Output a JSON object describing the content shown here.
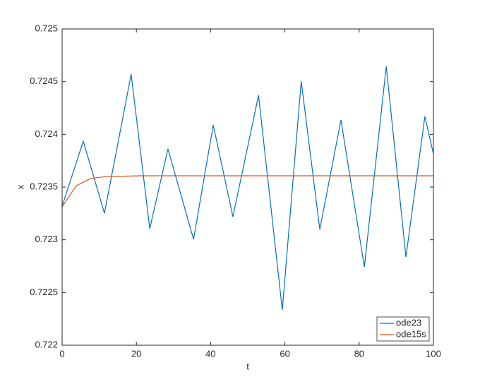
{
  "chart_data": {
    "type": "line",
    "xlabel": "t",
    "ylabel": "x",
    "xlim": [
      0,
      100
    ],
    "xticks": [
      0,
      20,
      40,
      60,
      80,
      100
    ],
    "ylim": [
      0.722,
      0.725
    ],
    "yticks": [
      0.722,
      0.7225,
      0.723,
      0.7235,
      0.724,
      0.7245,
      0.725
    ],
    "legend_position": "southeast",
    "grid": false,
    "series": [
      {
        "name": "ode23",
        "color": "#0072bd",
        "x": [
          0,
          5.7,
          11.4,
          18.6,
          23.6,
          28.5,
          35.4,
          40.7,
          46.0,
          52.9,
          59.3,
          64.4,
          69.4,
          75.1,
          81.4,
          87.3,
          92.6,
          97.7,
          100
        ],
        "values": [
          0.72332,
          0.723935,
          0.723252,
          0.724571,
          0.723105,
          0.723862,
          0.723004,
          0.724089,
          0.723219,
          0.724371,
          0.722335,
          0.724504,
          0.723098,
          0.724136,
          0.722743,
          0.724645,
          0.722837,
          0.72417,
          0.723815
        ]
      },
      {
        "name": "ode15s",
        "color": "#d95319",
        "x": [
          0,
          3.8,
          7.6,
          11.8,
          21.3,
          40,
          60,
          80,
          100
        ],
        "values": [
          0.723313,
          0.723513,
          0.72358,
          0.7236,
          0.723607,
          0.723607,
          0.723607,
          0.723607,
          0.723607
        ]
      }
    ]
  }
}
